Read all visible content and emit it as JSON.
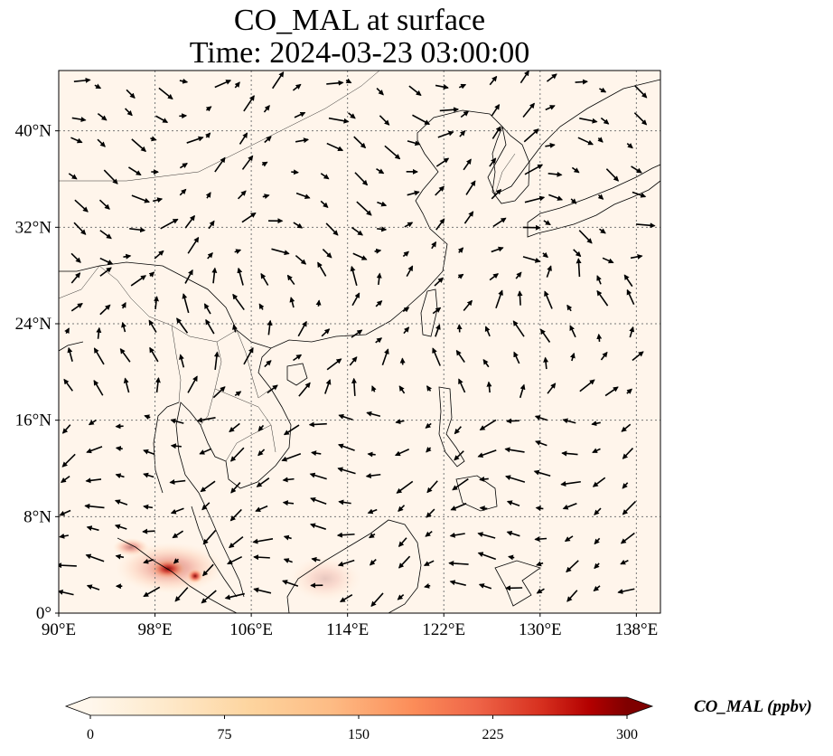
{
  "title": {
    "line1": "CO_MAL at surface",
    "line2": "Time: 2024-03-23 03:00:00"
  },
  "map": {
    "extent": {
      "lon_min": 90,
      "lon_max": 140,
      "lat_min": 0,
      "lat_max": 45
    },
    "lon_ticks": [
      {
        "value": 90,
        "label": "90°E"
      },
      {
        "value": 98,
        "label": "98°E"
      },
      {
        "value": 106,
        "label": "106°E"
      },
      {
        "value": 114,
        "label": "114°E"
      },
      {
        "value": 122,
        "label": "122°E"
      },
      {
        "value": 130,
        "label": "130°E"
      },
      {
        "value": 138,
        "label": "138°E"
      }
    ],
    "lat_ticks": [
      {
        "value": 0,
        "label": "0°"
      },
      {
        "value": 8,
        "label": "8°N"
      },
      {
        "value": 16,
        "label": "16°N"
      },
      {
        "value": 24,
        "label": "24°N"
      },
      {
        "value": 32,
        "label": "32°N"
      },
      {
        "value": 40,
        "label": "40°N"
      }
    ],
    "background_color": "#fff5eb",
    "gridlines": "dotted",
    "coastline_color": "#000000",
    "wind_vectors": true
  },
  "colorbar": {
    "label": "CO_MAL (ppbv)",
    "min": 0,
    "max": 300,
    "extend": "both",
    "colormap": "OrRd",
    "ticks": [
      {
        "value": 0,
        "label": "0"
      },
      {
        "value": 75,
        "label": "75"
      },
      {
        "value": 150,
        "label": "150"
      },
      {
        "value": 225,
        "label": "225"
      },
      {
        "value": 300,
        "label": "300"
      }
    ]
  }
}
